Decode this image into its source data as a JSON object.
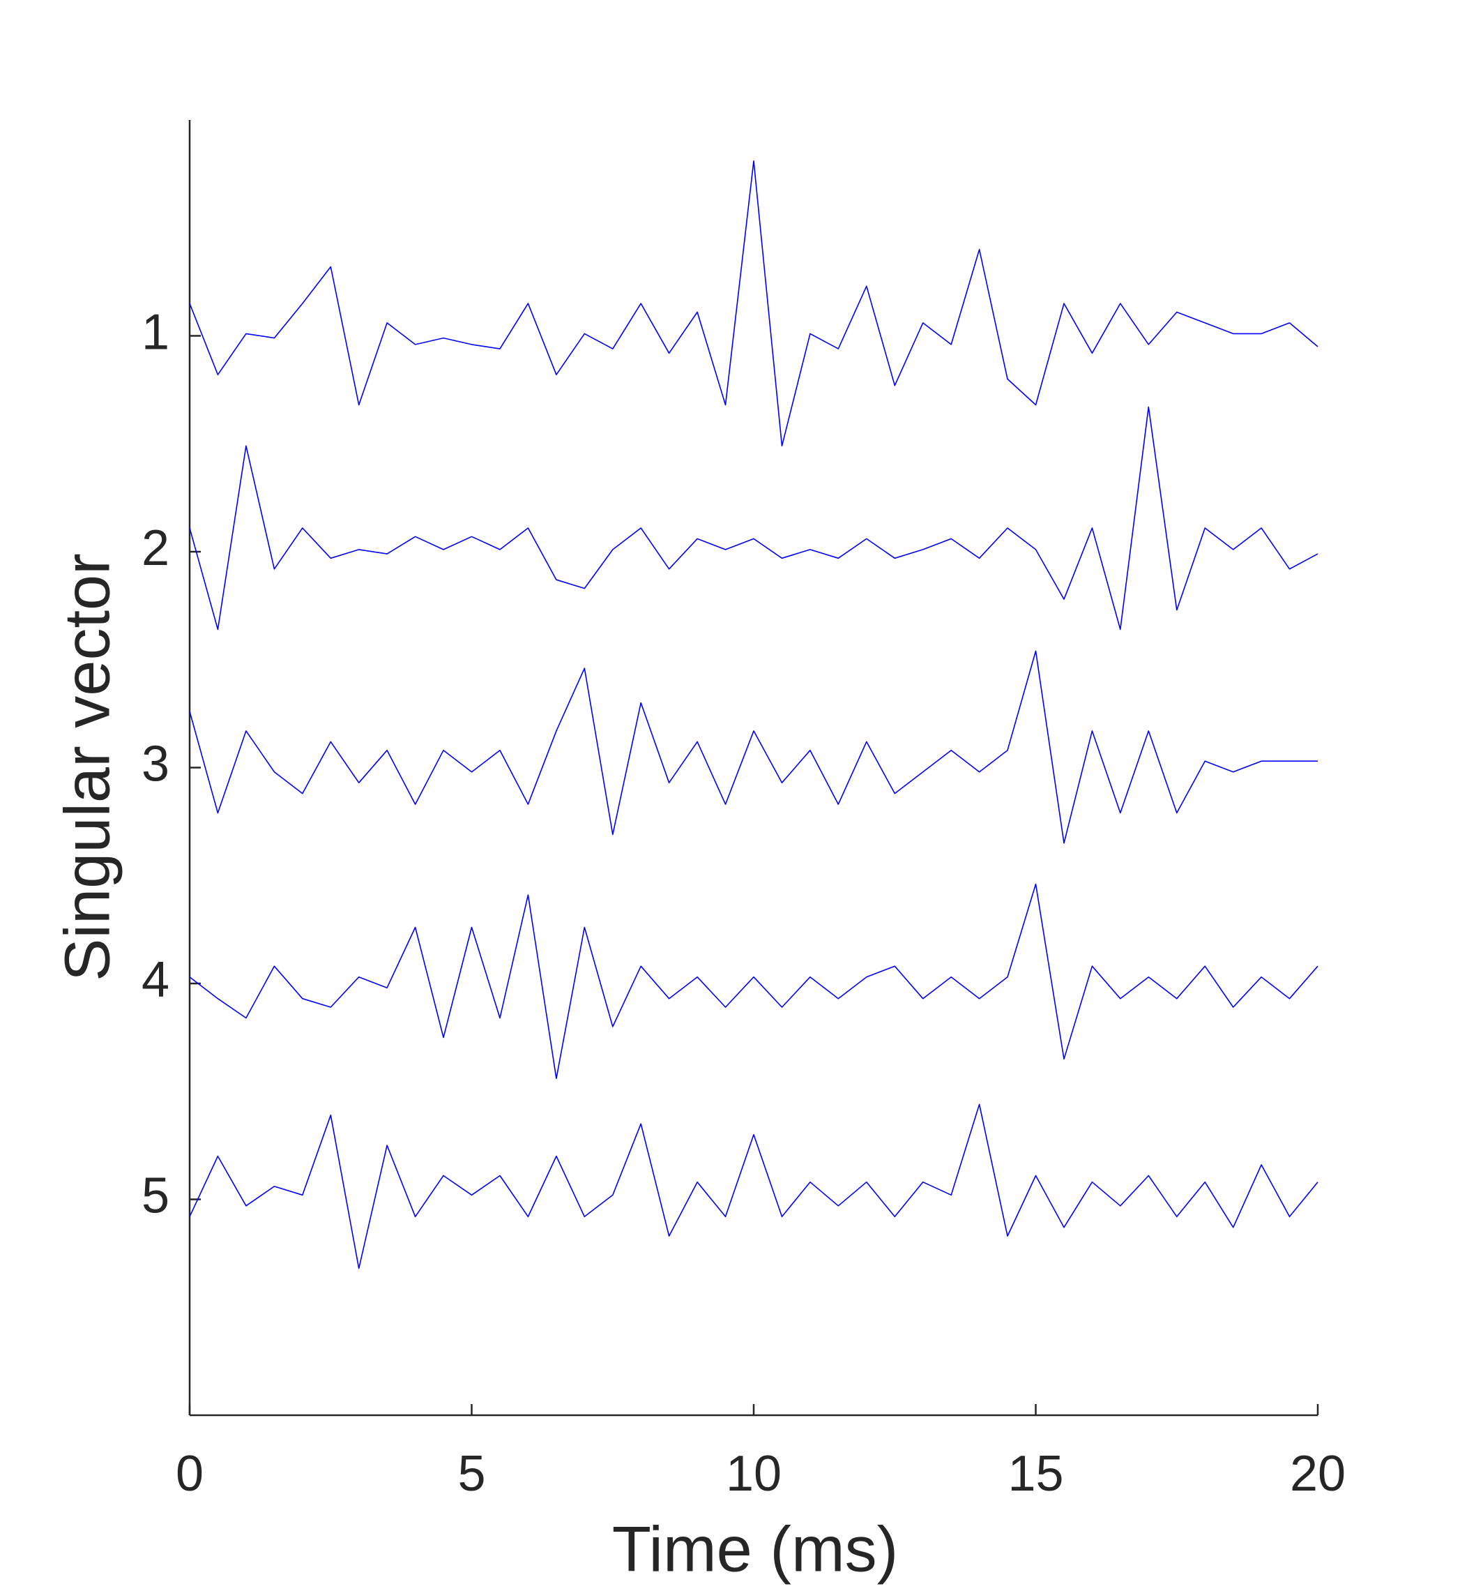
{
  "chart_data": {
    "type": "line",
    "xlabel": "Time (ms)",
    "ylabel": "Singular vector",
    "x": [
      0,
      0.5,
      1,
      1.5,
      2,
      2.5,
      3,
      3.5,
      4,
      4.5,
      5,
      5.5,
      6,
      6.5,
      7,
      7.5,
      8,
      8.5,
      9,
      9.5,
      10,
      10.5,
      11,
      11.5,
      12,
      12.5,
      13,
      13.5,
      14,
      14.5,
      15,
      15.5,
      16,
      16.5,
      17,
      17.5,
      18,
      18.5,
      19,
      19.5,
      20
    ],
    "series": [
      {
        "color": "#0000ff",
        "values": [
          0.85,
          1.18,
          0.99,
          1.01,
          0.85,
          0.68,
          1.32,
          0.94,
          1.04,
          1.01,
          1.04,
          1.06,
          0.85,
          1.18,
          0.99,
          1.06,
          0.85,
          1.08,
          0.89,
          1.32,
          0.19,
          1.51,
          0.99,
          1.06,
          0.77,
          1.23,
          0.94,
          1.04,
          0.6,
          1.2,
          1.32,
          0.85,
          1.08,
          0.85,
          1.04,
          0.89,
          0.94,
          0.99,
          0.99,
          0.94,
          1.05
        ]
      },
      {
        "color": "#0000ff",
        "values": [
          1.89,
          2.36,
          1.51,
          2.08,
          1.89,
          2.03,
          1.99,
          2.01,
          1.93,
          1.99,
          1.93,
          1.99,
          1.89,
          2.13,
          2.17,
          1.99,
          1.89,
          2.08,
          1.94,
          1.99,
          1.94,
          2.03,
          1.99,
          2.03,
          1.94,
          2.03,
          1.99,
          1.94,
          2.03,
          1.89,
          1.99,
          2.22,
          1.89,
          2.36,
          1.33,
          2.27,
          1.89,
          1.99,
          1.89,
          2.08,
          2.01
        ]
      },
      {
        "color": "#0000ff",
        "values": [
          2.74,
          3.21,
          2.83,
          3.02,
          3.12,
          2.88,
          3.07,
          2.92,
          3.17,
          2.92,
          3.02,
          2.92,
          3.17,
          2.83,
          2.54,
          3.31,
          2.7,
          3.07,
          2.88,
          3.17,
          2.83,
          3.07,
          2.92,
          3.17,
          2.88,
          3.12,
          3.02,
          2.92,
          3.02,
          2.92,
          2.46,
          3.35,
          2.83,
          3.21,
          2.83,
          3.21,
          2.97,
          3.02,
          2.97,
          2.97,
          2.97
        ]
      },
      {
        "color": "#0000ff",
        "values": [
          3.97,
          4.07,
          4.16,
          3.92,
          4.07,
          4.11,
          3.97,
          4.02,
          3.74,
          4.25,
          3.74,
          4.16,
          3.59,
          4.44,
          3.74,
          4.2,
          3.92,
          4.07,
          3.97,
          4.11,
          3.97,
          4.11,
          3.97,
          4.07,
          3.97,
          3.92,
          4.07,
          3.97,
          4.07,
          3.97,
          3.54,
          4.35,
          3.92,
          4.07,
          3.97,
          4.07,
          3.92,
          4.11,
          3.97,
          4.07,
          3.92
        ]
      },
      {
        "color": "#0000ff",
        "values": [
          5.08,
          4.8,
          5.03,
          4.94,
          4.98,
          4.61,
          5.32,
          4.75,
          5.08,
          4.89,
          4.98,
          4.89,
          5.08,
          4.8,
          5.08,
          4.98,
          4.65,
          5.17,
          4.92,
          5.08,
          4.7,
          5.08,
          4.92,
          5.03,
          4.92,
          5.08,
          4.92,
          4.98,
          4.56,
          5.17,
          4.89,
          5.13,
          4.92,
          5.03,
          4.89,
          5.08,
          4.92,
          5.13,
          4.84,
          5.08,
          4.92
        ]
      }
    ],
    "xlim": [
      0,
      20
    ],
    "xticks": [
      0,
      5,
      10,
      15,
      20
    ],
    "ylim": [
      0,
      6
    ],
    "yticks": [
      1,
      2,
      3,
      4,
      5
    ],
    "y_reversed": true
  }
}
